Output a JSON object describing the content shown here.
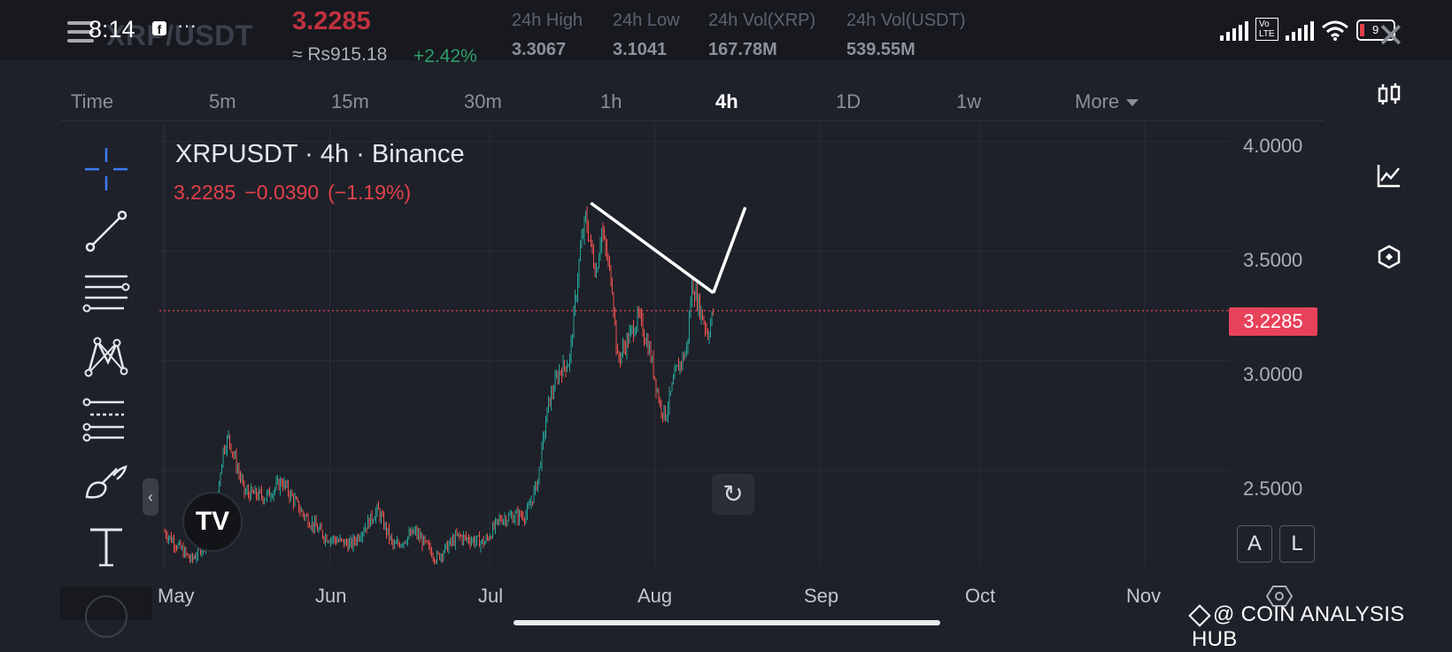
{
  "status": {
    "time": "8:14",
    "dots": "···",
    "battery": "9"
  },
  "header": {
    "pair": "XRP/USDT",
    "price": "3.2285",
    "price_local": "≈ Rs915.18",
    "change_pct": "+2.42%",
    "stats": [
      {
        "label": "24h High",
        "value": "3.3067"
      },
      {
        "label": "24h Low",
        "value": "3.1041"
      },
      {
        "label": "24h Vol(XRP)",
        "value": "167.78M"
      },
      {
        "label": "24h Vol(USDT)",
        "value": "539.55M"
      }
    ]
  },
  "timeframes": {
    "items": [
      "Time",
      "5m",
      "15m",
      "30m",
      "1h",
      "4h",
      "1D",
      "1w",
      "More"
    ],
    "active": "4h"
  },
  "legend": {
    "title": "XRPUSDT · 4h · Binance",
    "last": "3.2285",
    "change": "−0.0390",
    "change_pct": "(−1.19%)"
  },
  "icons": {
    "left_toolbar": [
      "crosshair-icon",
      "trendline-icon",
      "fib-levels-icon",
      "pattern-icon",
      "projection-icon",
      "brush-icon",
      "text-icon"
    ],
    "right_toolbar": [
      "candles-icon",
      "indicators-icon",
      "objects-icon"
    ]
  },
  "scale_buttons": {
    "auto": "A",
    "log": "L"
  },
  "colors": {
    "up": "#26a69a",
    "down": "#ef5350",
    "price_line": "#e8425b",
    "accent_price": "#c0323f",
    "change_positive": "#2f9e6a"
  },
  "watermark": "@ COIN ANALYSIS HUB",
  "chart_data": {
    "type": "candlestick",
    "title": "XRPUSDT · 4h · Binance",
    "x_labels": [
      "May",
      "Jun",
      "Jul",
      "Aug",
      "Sep",
      "Oct",
      "Nov"
    ],
    "y_ticks": [
      "4.0000",
      "3.5000",
      "3.0000",
      "2.5000"
    ],
    "ylim": [
      2.06,
      4.08
    ],
    "last_price": 3.2285,
    "last_price_label": "3.2285",
    "grid": true,
    "price_path": [
      [
        "2025-05-01",
        2.22
      ],
      [
        "2025-05-06",
        2.09
      ],
      [
        "2025-05-10",
        2.22
      ],
      [
        "2025-05-12",
        2.6
      ],
      [
        "2025-05-13",
        2.65
      ],
      [
        "2025-05-16",
        2.4
      ],
      [
        "2025-05-20",
        2.38
      ],
      [
        "2025-05-23",
        2.45
      ],
      [
        "2025-05-27",
        2.3
      ],
      [
        "2025-05-31",
        2.2
      ],
      [
        "2025-06-05",
        2.16
      ],
      [
        "2025-06-10",
        2.32
      ],
      [
        "2025-06-13",
        2.15
      ],
      [
        "2025-06-17",
        2.22
      ],
      [
        "2025-06-21",
        2.1
      ],
      [
        "2025-06-25",
        2.2
      ],
      [
        "2025-06-30",
        2.17
      ],
      [
        "2025-07-03",
        2.28
      ],
      [
        "2025-07-08",
        2.3
      ],
      [
        "2025-07-10",
        2.45
      ],
      [
        "2025-07-12",
        2.8
      ],
      [
        "2025-07-14",
        2.95
      ],
      [
        "2025-07-16",
        3.0
      ],
      [
        "2025-07-18",
        3.5
      ],
      [
        "2025-07-19",
        3.65
      ],
      [
        "2025-07-21",
        3.4
      ],
      [
        "2025-07-22",
        3.6
      ],
      [
        "2025-07-24",
        3.35
      ],
      [
        "2025-07-25",
        3.0
      ],
      [
        "2025-07-27",
        3.1
      ],
      [
        "2025-07-29",
        3.2
      ],
      [
        "2025-07-31",
        3.05
      ],
      [
        "2025-08-02",
        2.8
      ],
      [
        "2025-08-03",
        2.75
      ],
      [
        "2025-08-05",
        2.95
      ],
      [
        "2025-08-07",
        3.05
      ],
      [
        "2025-08-08",
        3.35
      ],
      [
        "2025-08-10",
        3.2
      ],
      [
        "2025-08-11",
        3.12
      ],
      [
        "2025-08-12",
        3.23
      ]
    ],
    "drawings": {
      "descending_trendline": [
        [
          "2025-07-20",
          3.72
        ],
        [
          "2025-08-12",
          3.31
        ]
      ],
      "projection_line": [
        [
          "2025-08-12",
          3.31
        ],
        [
          "2025-08-18",
          3.7
        ]
      ]
    }
  }
}
